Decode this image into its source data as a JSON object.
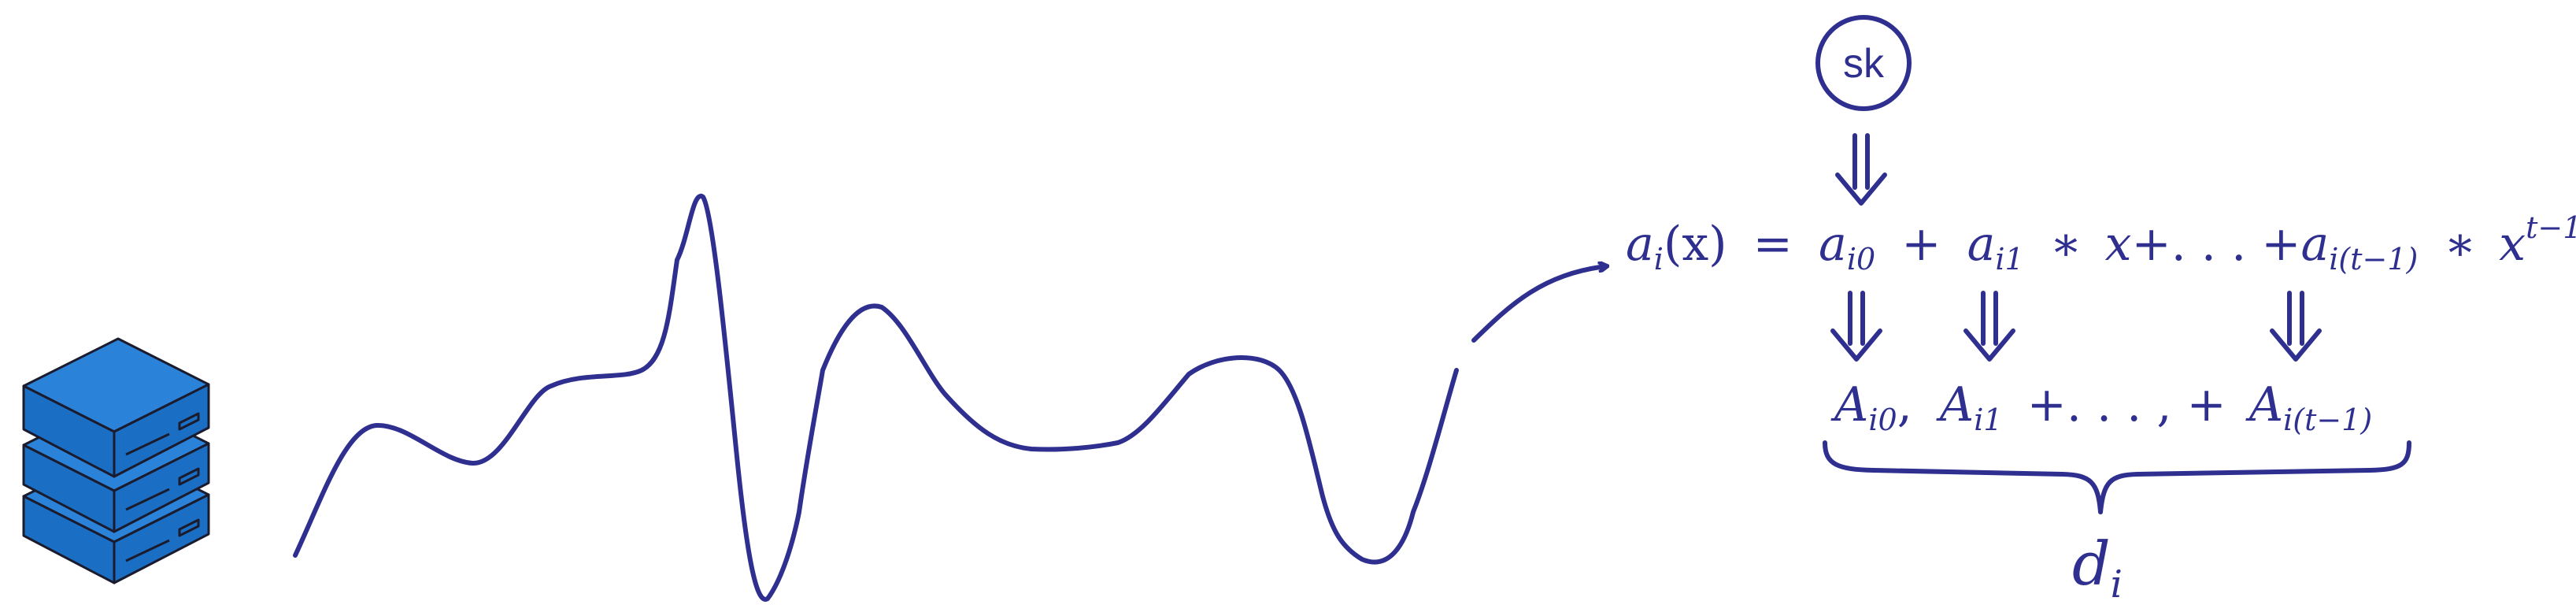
{
  "colors": {
    "ink": "#2e2f8f",
    "server_fill": "#1a6fc4",
    "server_top": "#2b82d9",
    "server_outline": "#1b1b2e"
  },
  "icons": {
    "server": "server-stack-icon",
    "secret_key": "circle-label"
  },
  "secret_key": {
    "label": "sk"
  },
  "equation": {
    "lhs_a": "a",
    "lhs_i": "i",
    "lhs_x": "(x)",
    "eq": "=",
    "t0_a": "a",
    "t0_sub": "i0",
    "plus1": "+",
    "t1_a": "a",
    "t1_sub": "i1",
    "times1": "∗",
    "x1": "x",
    "dots": "+. . . +",
    "t2_a": "a",
    "t2_sub": "i(t−1)",
    "times2": "∗",
    "x2": "x",
    "x2_sup": "t−1"
  },
  "commitments": {
    "c0_A": "A",
    "c0_sub": "i0",
    "c0_sep": ",",
    "c1_A": "A",
    "c1_sub": "i1",
    "mid": "+. . . , +",
    "c2_A": "A",
    "c2_sub": "i(t−1)"
  },
  "result": {
    "d": "d",
    "sub": "i"
  }
}
